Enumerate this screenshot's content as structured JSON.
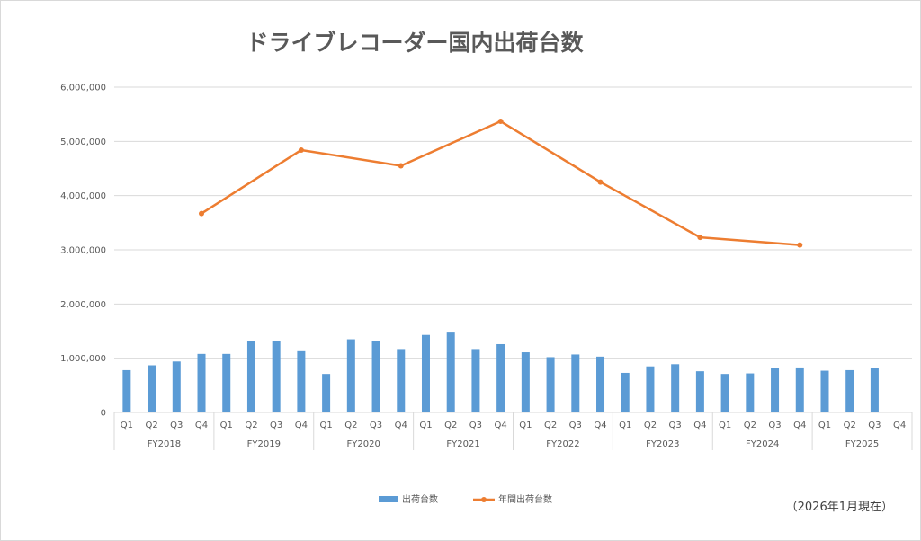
{
  "chart_data": {
    "type": "bar",
    "title": "ドライブレコーダー国内出荷台数",
    "note": "（2026年1月現在）",
    "quarters": [
      "Q1",
      "Q2",
      "Q3",
      "Q4"
    ],
    "years": [
      "FY2018",
      "FY2019",
      "FY2020",
      "FY2021",
      "FY2022",
      "FY2023",
      "FY2024",
      "FY2025"
    ],
    "ylim": [
      0,
      6000000
    ],
    "yticks": [
      0,
      1000000,
      2000000,
      3000000,
      4000000,
      5000000,
      6000000
    ],
    "ytick_labels": [
      "0",
      "1,000,000",
      "2,000,000",
      "3,000,000",
      "4,000,000",
      "5,000,000",
      "6,000,000"
    ],
    "grid": true,
    "legend_position": "bottom",
    "series": [
      {
        "name": "出荷台数",
        "type": "bar",
        "color": "#5b9bd5",
        "values": [
          780000,
          870000,
          940000,
          1080000,
          1080000,
          1310000,
          1310000,
          1130000,
          710000,
          1350000,
          1320000,
          1170000,
          1430000,
          1490000,
          1170000,
          1260000,
          1110000,
          1020000,
          1070000,
          1030000,
          730000,
          850000,
          890000,
          760000,
          710000,
          720000,
          820000,
          830000,
          770000,
          780000,
          820000,
          null
        ]
      },
      {
        "name": "年間出荷台数",
        "type": "line",
        "color": "#ed7d31",
        "values": [
          null,
          null,
          null,
          3670000,
          null,
          null,
          null,
          4840000,
          null,
          null,
          null,
          4550000,
          null,
          null,
          null,
          5370000,
          null,
          null,
          null,
          4250000,
          null,
          null,
          null,
          3230000,
          null,
          null,
          null,
          3090000,
          null,
          null,
          null,
          null
        ]
      }
    ]
  }
}
